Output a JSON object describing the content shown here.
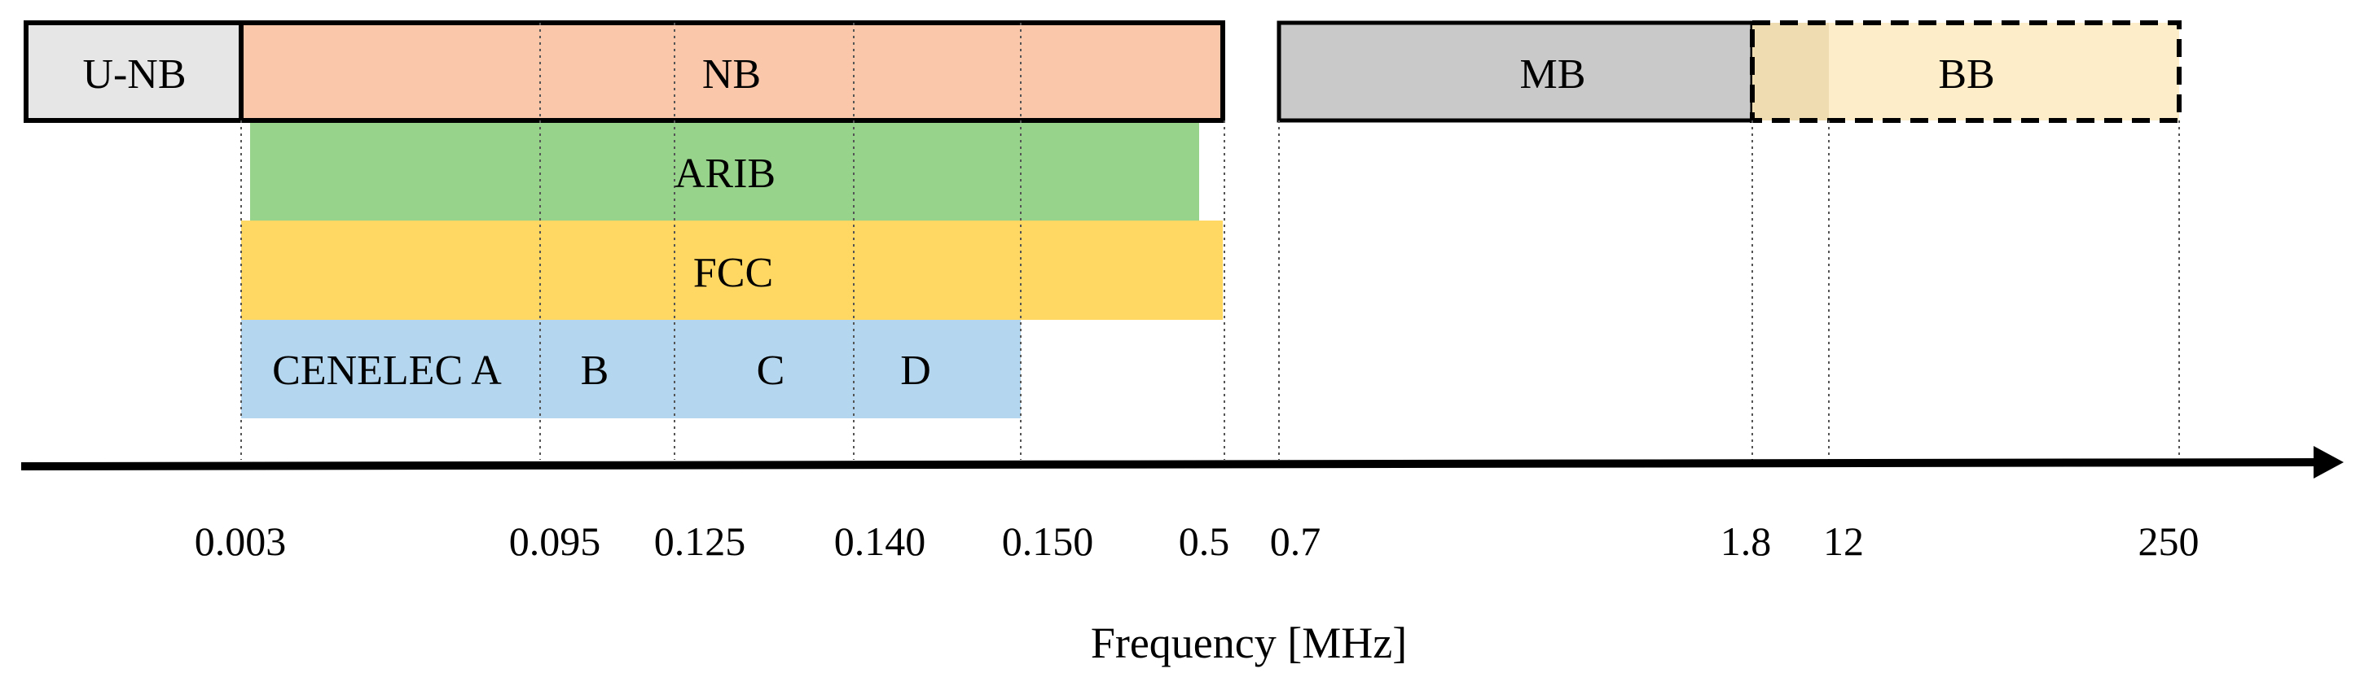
{
  "bands": {
    "unb": {
      "label": "U-NB",
      "color": "#e6e6e6"
    },
    "nb": {
      "label": "NB",
      "color": "#fbc7aa"
    },
    "mb": {
      "label": "MB",
      "color": "#c9c9c9"
    },
    "overlap": {
      "color": "#efdcb0"
    },
    "bb": {
      "label": "BB",
      "color": "#fdeec9"
    }
  },
  "regulations": {
    "arib": {
      "label": "ARIB",
      "color": "#97d38b"
    },
    "fcc": {
      "label": "FCC",
      "color": "#fed862"
    },
    "cenelec": {
      "color": "#b4d7ef",
      "label_a": "CENELEC A",
      "label_b": "B",
      "label_c": "C",
      "label_d": "D"
    }
  },
  "axis": {
    "title": "Frequency [MHz]",
    "ticks": [
      "0.003",
      "0.095",
      "0.125",
      "0.140",
      "0.150",
      "0.5",
      "0.7",
      "1.8",
      "12",
      "250"
    ]
  }
}
